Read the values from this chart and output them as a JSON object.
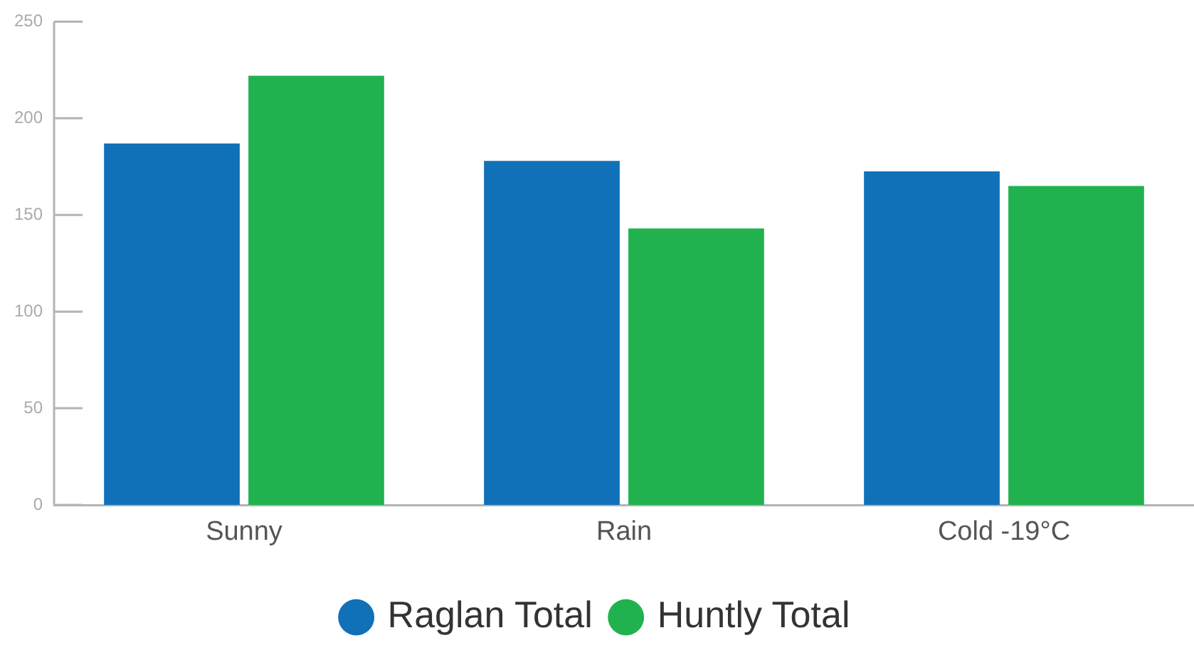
{
  "chart_data": {
    "type": "bar",
    "categories": [
      "Sunny",
      "Rain",
      "Cold -19°C"
    ],
    "series": [
      {
        "name": "Raglan Total",
        "color": "#1070b8",
        "values": [
          187,
          178,
          172.5
        ]
      },
      {
        "name": "Huntly Total",
        "color": "#21b24f",
        "values": [
          222,
          143,
          165
        ]
      }
    ],
    "ylim": [
      0,
      250
    ],
    "yticks": [
      0,
      50,
      100,
      150,
      200,
      250
    ],
    "grid": false,
    "legend": "bottom"
  }
}
